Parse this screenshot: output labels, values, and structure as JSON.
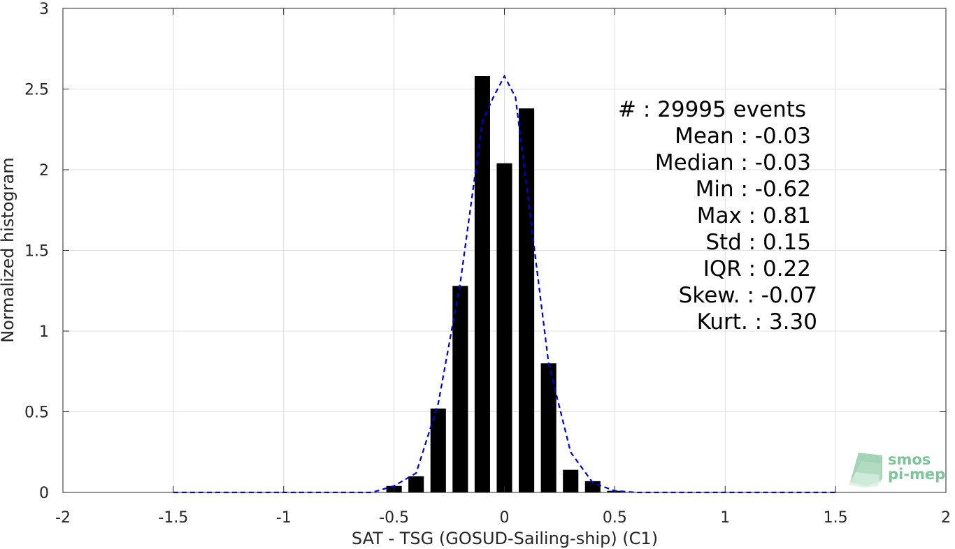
{
  "chart_data": {
    "type": "bar",
    "xlabel": "SAT - TSG (GOSUD-Sailing-ship) (C1)",
    "ylabel": "Normalized histogram",
    "xlim": [
      -2,
      2
    ],
    "ylim": [
      0,
      3
    ],
    "x_ticks": [
      "-2",
      "-1.5",
      "-1",
      "-0.5",
      "0",
      "0.5",
      "1",
      "1.5",
      "2"
    ],
    "y_ticks": [
      "0",
      "0.5",
      "1",
      "1.5",
      "2",
      "2.5",
      "3"
    ],
    "grid": true,
    "bar_width": 0.07,
    "series": [
      {
        "type": "bar",
        "color": "#000000",
        "x": [
          -0.6,
          -0.5,
          -0.4,
          -0.3,
          -0.2,
          -0.1,
          0.0,
          0.1,
          0.2,
          0.3,
          0.4,
          0.5
        ],
        "values": [
          0.0,
          0.04,
          0.1,
          0.52,
          1.28,
          2.58,
          2.04,
          2.38,
          0.8,
          0.14,
          0.07,
          0.01
        ]
      },
      {
        "type": "line",
        "style": "dashed",
        "color": "#0000dd",
        "x": [
          -1.5,
          -1.0,
          -0.6,
          -0.5,
          -0.4,
          -0.3,
          -0.2,
          -0.1,
          -0.05,
          0.0,
          0.05,
          0.1,
          0.2,
          0.3,
          0.4,
          0.5,
          0.6,
          1.0,
          1.5
        ],
        "values": [
          0.0,
          0.0,
          0.0,
          0.04,
          0.12,
          0.55,
          1.3,
          2.3,
          2.45,
          2.58,
          2.45,
          1.9,
          0.8,
          0.25,
          0.06,
          0.01,
          0.0,
          0.0,
          0.0
        ]
      }
    ],
    "annotations": [
      "#  : 29995 events",
      "Mean : -0.03",
      "Median : -0.03",
      "Min : -0.62",
      "Max : 0.81",
      "Std : 0.15",
      "IQR : 0.22",
      "Skew. : -0.07",
      "Kurt. : 3.30"
    ]
  },
  "logo": {
    "line1": "smos",
    "line2": "pi-mep",
    "color": "#5aa878"
  }
}
